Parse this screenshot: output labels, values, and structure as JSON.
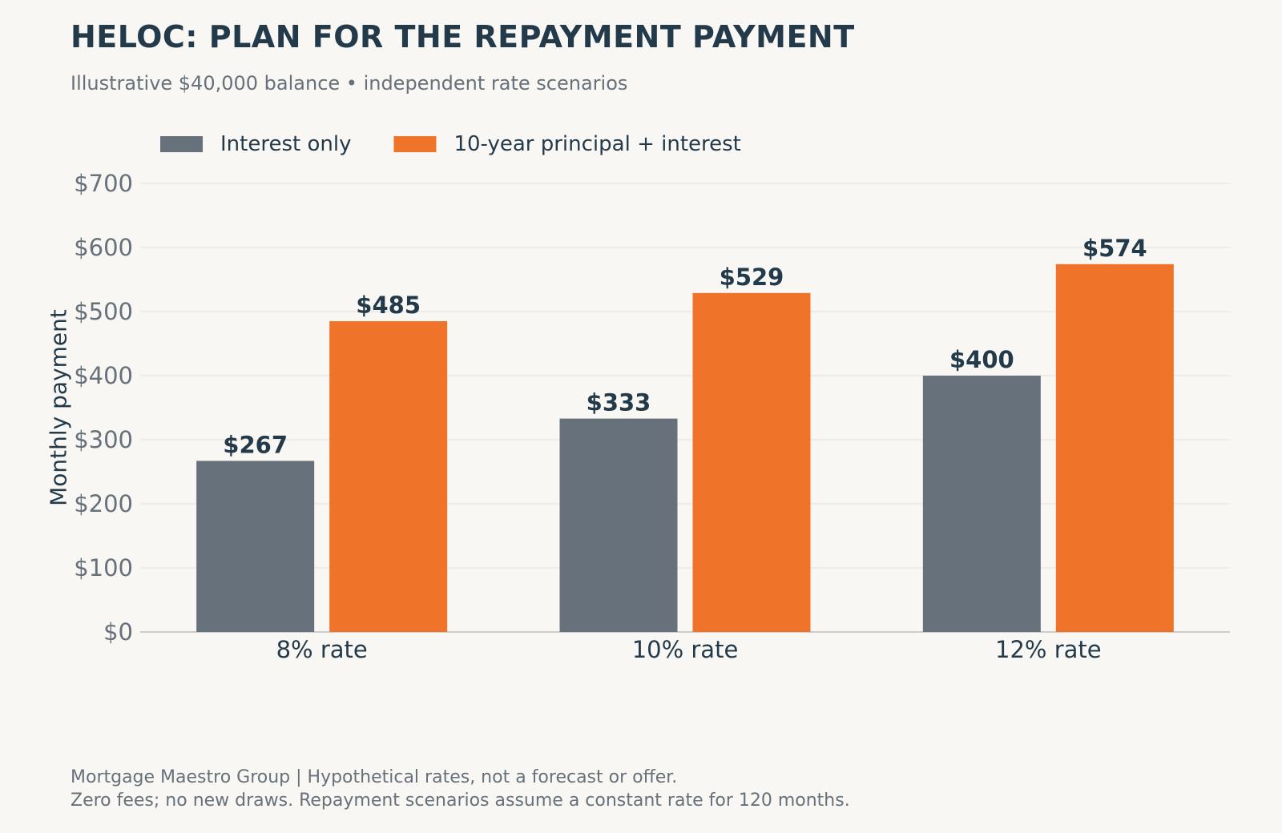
{
  "title": "HELOC: PLAN FOR THE REPAYMENT PAYMENT",
  "subtitle": "Illustrative $40,000 balance • independent rate scenarios",
  "footer": {
    "line1": "Mortgage Maestro Group | Hypothetical rates, not a forecast or offer.",
    "line2": "Zero fees; no new draws. Repayment scenarios assume a constant rate for 120 months."
  },
  "colors": {
    "interest_only": "#66717b",
    "principal_interest": "#ef7328",
    "text_dark": "#233a4b",
    "text_muted": "#66717b",
    "grid": "#ece9e4",
    "axis": "#cccccc"
  },
  "chart_data": {
    "type": "bar",
    "title": "HELOC: PLAN FOR THE REPAYMENT PAYMENT",
    "subtitle": "Illustrative $40,000 balance • independent rate scenarios",
    "xlabel": "",
    "ylabel": "Monthly payment",
    "categories": [
      "8% rate",
      "10% rate",
      "12% rate"
    ],
    "series": [
      {
        "name": "Interest only",
        "values": [
          267,
          333,
          400
        ],
        "labels": [
          "$267",
          "$333",
          "$400"
        ],
        "color": "#66717b"
      },
      {
        "name": "10-year principal + interest",
        "values": [
          485,
          529,
          574
        ],
        "labels": [
          "$485",
          "$529",
          "$574"
        ],
        "color": "#ef7328"
      }
    ],
    "ylim": [
      0,
      700
    ],
    "yticks": [
      0,
      100,
      200,
      300,
      400,
      500,
      600,
      700
    ],
    "ytick_labels": [
      "$0",
      "$100",
      "$200",
      "$300",
      "$400",
      "$500",
      "$600",
      "$700"
    ],
    "grid": true,
    "legend_position": "top-left"
  }
}
